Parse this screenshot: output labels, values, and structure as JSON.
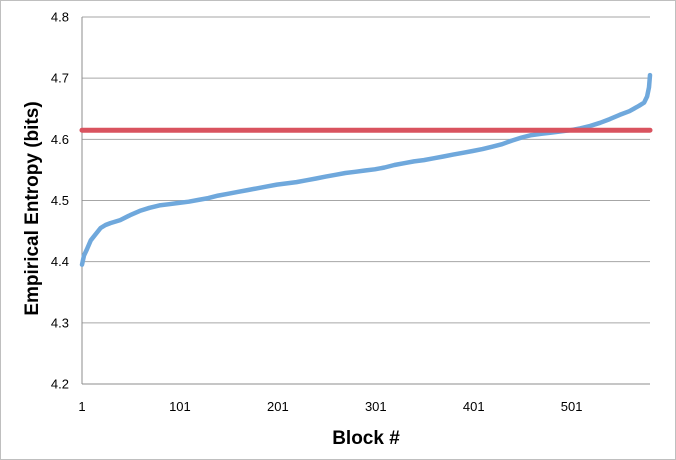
{
  "chart_data": {
    "type": "line",
    "title": "",
    "xlabel": "Block #",
    "ylabel": "Empirical Entropy (bits)",
    "xlim": [
      1,
      581
    ],
    "ylim": [
      4.2,
      4.8
    ],
    "x_ticks": [
      "1",
      "101",
      "201",
      "301",
      "401",
      "501"
    ],
    "y_ticks": [
      "4.2",
      "4.3",
      "4.4",
      "4.5",
      "4.6",
      "4.7",
      "4.8"
    ],
    "grid": true,
    "legend": "none",
    "series": [
      {
        "color": "#6fa8dc",
        "x": [
          1,
          3,
          6,
          10,
          15,
          20,
          25,
          30,
          40,
          50,
          60,
          70,
          80,
          90,
          100,
          110,
          120,
          130,
          140,
          150,
          160,
          170,
          180,
          190,
          200,
          210,
          220,
          230,
          240,
          250,
          260,
          270,
          280,
          290,
          300,
          310,
          320,
          330,
          340,
          350,
          360,
          370,
          380,
          390,
          400,
          410,
          420,
          430,
          440,
          450,
          460,
          470,
          480,
          490,
          500,
          510,
          520,
          530,
          540,
          550,
          560,
          570,
          575,
          578,
          580,
          581
        ],
        "values": [
          4.395,
          4.41,
          4.42,
          4.435,
          4.445,
          4.455,
          4.46,
          4.463,
          4.468,
          4.476,
          4.483,
          4.488,
          4.492,
          4.494,
          4.496,
          4.498,
          4.501,
          4.504,
          4.508,
          4.511,
          4.514,
          4.517,
          4.52,
          4.523,
          4.526,
          4.528,
          4.53,
          4.533,
          4.536,
          4.539,
          4.542,
          4.545,
          4.547,
          4.549,
          4.551,
          4.554,
          4.558,
          4.561,
          4.564,
          4.566,
          4.569,
          4.572,
          4.575,
          4.578,
          4.581,
          4.584,
          4.588,
          4.592,
          4.598,
          4.603,
          4.607,
          4.609,
          4.611,
          4.613,
          4.615,
          4.618,
          4.622,
          4.627,
          4.633,
          4.64,
          4.646,
          4.655,
          4.66,
          4.67,
          4.685,
          4.705
        ]
      },
      {
        "color": "#d9535f",
        "x": [
          1,
          581
        ],
        "values": [
          4.615,
          4.615
        ]
      }
    ]
  }
}
